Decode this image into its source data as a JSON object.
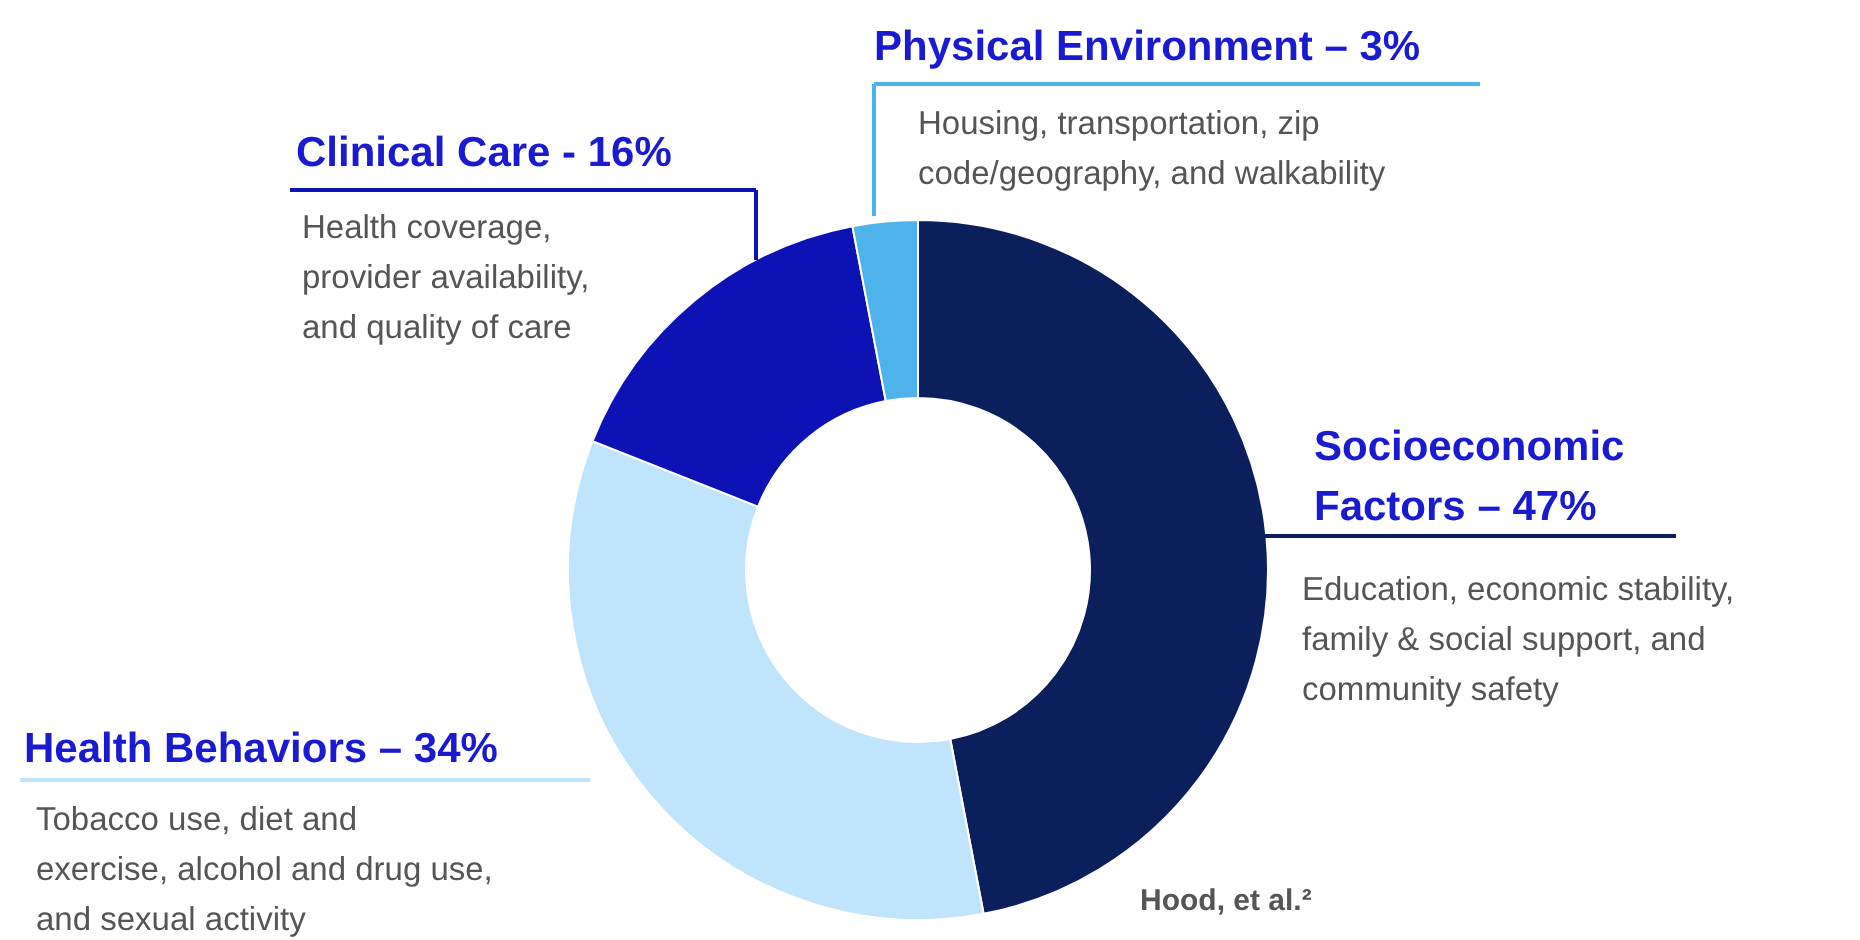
{
  "chart_data": {
    "type": "donut",
    "categories": [
      "Socioeconomic Factors – 47%",
      "Health Behaviors – 34%",
      "Clinical Care - 16%",
      "Physical Environment – 3%"
    ],
    "values": [
      47,
      34,
      16,
      3
    ],
    "colors": [
      "#0b1f5c",
      "#bfe4fb",
      "#0d12b5",
      "#4db3ea"
    ],
    "annotations": [
      "Education, economic stability,\nfamily & social support, and\ncommunity safety",
      "Tobacco use, diet and\nexercise, alcohol and drug use,\nand sexual activity",
      "Health coverage,\nprovider availability,\nand quality of care",
      "Housing, transportation, zip\ncode/geography, and walkability",
      "Hood, et al.²"
    ]
  }
}
